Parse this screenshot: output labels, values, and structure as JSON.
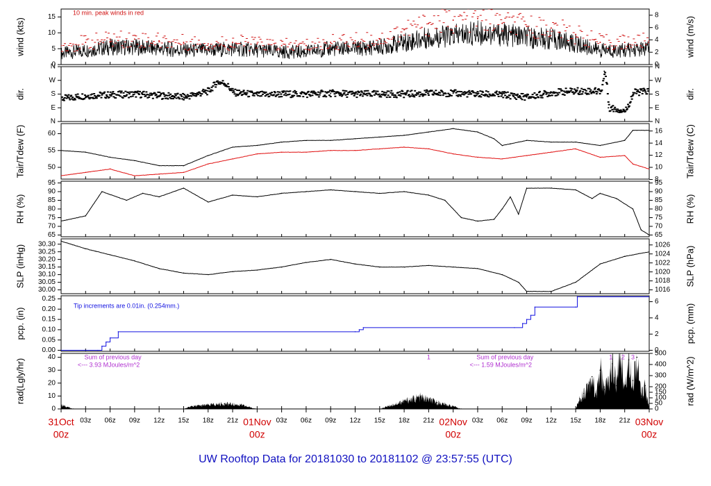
{
  "title": "UW Rooftop Data for 20181030  to  20181102 @ 23:57:55  (UTC)",
  "colors": {
    "axis": "#000000",
    "peak": "#d01010",
    "dew": "#e01010",
    "pcp": "#1010e0",
    "note_red": "#d01010",
    "note_blue": "#1010e0",
    "note_purple": "#b030d0",
    "date": "#d00000",
    "title": "#1010c0"
  },
  "time_axis": {
    "range_hours": [
      0,
      72
    ],
    "ticks": [
      {
        "h": 0,
        "label": "31Oct",
        "major": true
      },
      {
        "h": 3,
        "label": "03z"
      },
      {
        "h": 6,
        "label": "06z"
      },
      {
        "h": 9,
        "label": "09z"
      },
      {
        "h": 12,
        "label": "12z"
      },
      {
        "h": 15,
        "label": "15z"
      },
      {
        "h": 18,
        "label": "18z"
      },
      {
        "h": 21,
        "label": "21z"
      },
      {
        "h": 24,
        "label": "01Nov",
        "major": true
      },
      {
        "h": 27,
        "label": "03z"
      },
      {
        "h": 30,
        "label": "06z"
      },
      {
        "h": 33,
        "label": "09z"
      },
      {
        "h": 36,
        "label": "12z"
      },
      {
        "h": 39,
        "label": "15z"
      },
      {
        "h": 42,
        "label": "18z"
      },
      {
        "h": 45,
        "label": "21z"
      },
      {
        "h": 48,
        "label": "02Nov",
        "major": true
      },
      {
        "h": 51,
        "label": "03z"
      },
      {
        "h": 54,
        "label": "06z"
      },
      {
        "h": 57,
        "label": "09z"
      },
      {
        "h": 60,
        "label": "12z"
      },
      {
        "h": 63,
        "label": "15z"
      },
      {
        "h": 66,
        "label": "18z"
      },
      {
        "h": 69,
        "label": "21z"
      },
      {
        "h": 72,
        "label": "03Nov",
        "major": true
      }
    ],
    "sublabel": "00z"
  },
  "chart_data": [
    {
      "type": "line",
      "id": "wind",
      "ylabel": "wind (kts)",
      "ylabel_right": "wind (m/s)",
      "ylim": [
        0,
        17.5
      ],
      "yticks": [
        0,
        5,
        10,
        15
      ],
      "right_ticks": [
        {
          "v": 0,
          "label": "0"
        },
        {
          "v": 2,
          "label": "2"
        },
        {
          "v": 4,
          "label": "4"
        },
        {
          "v": 6,
          "label": "6"
        },
        {
          "v": 8,
          "label": "8"
        }
      ],
      "right_scale": 1.9438,
      "annotation": "10 min. peak winds in red",
      "series": [
        {
          "name": "",
          "color": "#000000",
          "x": [
            0,
            3,
            6,
            9,
            12,
            15,
            18,
            21,
            24,
            27,
            30,
            33,
            36,
            39,
            42,
            45,
            48,
            51,
            54,
            57,
            60,
            63,
            66,
            69,
            72
          ],
          "values": [
            3.5,
            4.5,
            5.5,
            5.5,
            5,
            4.5,
            4.5,
            5,
            4.5,
            4,
            4,
            5,
            5,
            5.5,
            7,
            8.5,
            9,
            10,
            9.5,
            8.5,
            8,
            6.5,
            4.5,
            4.5,
            5
          ]
        },
        {
          "name": "",
          "color": "#d01010",
          "x": [
            0,
            3,
            6,
            9,
            12,
            15,
            18,
            21,
            24,
            27,
            30,
            33,
            36,
            39,
            42,
            45,
            48,
            51,
            54,
            57,
            60,
            63,
            66,
            69,
            72
          ],
          "values": [
            6,
            7,
            8,
            8,
            7.5,
            7,
            6.5,
            7,
            6.5,
            6,
            6,
            7,
            7.5,
            8,
            11,
            13,
            14,
            14.5,
            13,
            12,
            11.5,
            9.5,
            7,
            7,
            7.5
          ]
        }
      ]
    },
    {
      "type": "scatter",
      "id": "dir",
      "ylabel": "dir.",
      "ylabel_right": "dir.",
      "ylim": [
        0,
        360
      ],
      "yticks": [
        {
          "v": 0,
          "label": "N"
        },
        {
          "v": 90,
          "label": "E"
        },
        {
          "v": 180,
          "label": "S"
        },
        {
          "v": 270,
          "label": "W"
        },
        {
          "v": 360,
          "label": "N"
        }
      ],
      "series": [
        {
          "name": "",
          "x": [
            0,
            3,
            6,
            9,
            12,
            15,
            18,
            19,
            20,
            21,
            24,
            27,
            30,
            33,
            36,
            39,
            42,
            45,
            48,
            51,
            54,
            57,
            60,
            63,
            66,
            66.5,
            67,
            69,
            70,
            72
          ],
          "values": [
            150,
            170,
            175,
            180,
            170,
            160,
            200,
            260,
            250,
            190,
            175,
            180,
            180,
            185,
            180,
            180,
            180,
            185,
            185,
            180,
            175,
            160,
            190,
            200,
            200,
            330,
            90,
            70,
            190,
            200
          ]
        }
      ]
    },
    {
      "type": "line",
      "id": "temp",
      "ylabel": "Tair/Tdew (F)",
      "ylabel_right": "Tair/Tdew (C)",
      "ylim": [
        46.5,
        63
      ],
      "yticks": [
        50,
        55,
        60
      ],
      "right_ticks": [
        {
          "v": 46.4,
          "label": "8"
        },
        {
          "v": 50,
          "label": "10"
        },
        {
          "v": 53.6,
          "label": "12"
        },
        {
          "v": 57.2,
          "label": "14"
        },
        {
          "v": 60.8,
          "label": "16"
        }
      ],
      "series": [
        {
          "name": "",
          "color": "#000000",
          "x": [
            0,
            3,
            6,
            9,
            12,
            15,
            18,
            21,
            24,
            27,
            30,
            33,
            36,
            39,
            42,
            45,
            48,
            51,
            53,
            54,
            55,
            57,
            60,
            63,
            66,
            69,
            70,
            72
          ],
          "values": [
            55,
            54.5,
            53,
            52,
            50.5,
            50.5,
            53.5,
            56,
            56.5,
            57.5,
            58,
            58,
            58.5,
            59,
            59.5,
            60.5,
            61.5,
            60.5,
            58.5,
            56.5,
            57,
            58,
            57.5,
            57.5,
            56.5,
            58,
            61,
            61
          ]
        },
        {
          "name": "",
          "color": "#e01010",
          "x": [
            0,
            3,
            6,
            9,
            12,
            15,
            18,
            21,
            24,
            27,
            30,
            33,
            36,
            39,
            42,
            45,
            48,
            51,
            54,
            57,
            60,
            63,
            66,
            69,
            70,
            72
          ],
          "values": [
            47.5,
            48.5,
            49.5,
            47.5,
            48,
            48.5,
            51,
            52.5,
            54,
            54.5,
            54.5,
            55,
            55,
            55.5,
            56,
            55.5,
            54,
            53,
            52.5,
            53.5,
            54.5,
            55.5,
            53,
            53.5,
            51,
            49.5
          ]
        }
      ]
    },
    {
      "type": "line",
      "id": "rh",
      "ylabel": "RH (%)",
      "ylabel_right": "RH (%)",
      "ylim": [
        64,
        96
      ],
      "yticks": [
        65,
        70,
        75,
        80,
        85,
        90,
        95
      ],
      "right_ticks": [
        {
          "v": 65,
          "label": "65"
        },
        {
          "v": 70,
          "label": "70"
        },
        {
          "v": 75,
          "label": "75"
        },
        {
          "v": 80,
          "label": "80"
        },
        {
          "v": 85,
          "label": "85"
        },
        {
          "v": 90,
          "label": "90"
        },
        {
          "v": 95,
          "label": "95"
        }
      ],
      "series": [
        {
          "name": "",
          "color": "#000000",
          "x": [
            0,
            3,
            5,
            8,
            10,
            12,
            15,
            18,
            21,
            24,
            27,
            30,
            33,
            36,
            39,
            42,
            45,
            47,
            49,
            51,
            53,
            54,
            55,
            56,
            57,
            60,
            63,
            65,
            66,
            68,
            70,
            71,
            72
          ],
          "values": [
            73,
            76,
            90,
            85,
            89,
            87,
            92,
            84,
            88,
            87,
            89,
            90,
            91,
            90,
            89,
            90,
            88,
            85,
            75,
            73,
            74,
            80,
            87,
            77,
            92,
            92,
            91,
            86,
            89,
            86,
            80,
            68,
            65
          ]
        }
      ]
    },
    {
      "type": "line",
      "id": "slp",
      "ylabel": "SLP (inHg)",
      "ylabel_right": "SLP (hPa)",
      "ylim": [
        29.975,
        30.335
      ],
      "yticks": [
        30.0,
        30.05,
        30.1,
        30.15,
        30.2,
        30.25,
        30.3
      ],
      "ytick_labels": [
        "30.00",
        "30.05",
        "30.10",
        "30.15",
        "30.20",
        "30.25",
        "30.30"
      ],
      "right_ticks": [
        {
          "v": 30.0,
          "label": "1016"
        },
        {
          "v": 30.059,
          "label": "1018"
        },
        {
          "v": 30.118,
          "label": "1020"
        },
        {
          "v": 30.177,
          "label": "1022"
        },
        {
          "v": 30.236,
          "label": "1024"
        },
        {
          "v": 30.295,
          "label": "1026"
        }
      ],
      "series": [
        {
          "name": "",
          "color": "#000000",
          "x": [
            0,
            3,
            6,
            9,
            12,
            15,
            18,
            21,
            24,
            27,
            30,
            33,
            36,
            39,
            42,
            45,
            48,
            51,
            54,
            56,
            57,
            60,
            63,
            66,
            69,
            72
          ],
          "values": [
            30.32,
            30.27,
            30.23,
            30.19,
            30.14,
            30.11,
            30.1,
            30.12,
            30.13,
            30.15,
            30.18,
            30.2,
            30.17,
            30.15,
            30.15,
            30.16,
            30.15,
            30.14,
            30.1,
            30.05,
            29.99,
            29.99,
            30.05,
            30.17,
            30.22,
            30.25
          ]
        }
      ]
    },
    {
      "type": "line",
      "id": "pcp",
      "ylabel": "pcp. (in)",
      "ylabel_right": "pcp. (mm)",
      "ylim": [
        -0.005,
        0.265
      ],
      "yticks": [
        0,
        0.05,
        0.1,
        0.15,
        0.2,
        0.25
      ],
      "ytick_labels": [
        "0.00",
        "0.05",
        "0.10",
        "0.15",
        "0.20",
        "0.25"
      ],
      "right_ticks": [
        {
          "v": 0,
          "label": "0"
        },
        {
          "v": 0.0787,
          "label": "2"
        },
        {
          "v": 0.1575,
          "label": "4"
        },
        {
          "v": 0.2362,
          "label": "6"
        }
      ],
      "annotation": "Tip increments are 0.01in. (0.254mm.)",
      "series": [
        {
          "name": "",
          "color": "#1010e0",
          "x": [
            0,
            4.5,
            5,
            5.5,
            6,
            7,
            36,
            36.5,
            37,
            55.5,
            56.5,
            57,
            57.5,
            58,
            63,
            63.2,
            72
          ],
          "values": [
            0,
            0,
            0.02,
            0.04,
            0.06,
            0.09,
            0.09,
            0.1,
            0.11,
            0.11,
            0.13,
            0.15,
            0.17,
            0.21,
            0.21,
            0.26,
            0.26
          ]
        }
      ]
    },
    {
      "type": "area",
      "id": "rad",
      "ylabel": "rad(Lgly/hr)",
      "ylabel_right": "rad (W/m^2)",
      "ylim": [
        0,
        43
      ],
      "yticks": [
        0,
        10,
        20,
        30,
        40
      ],
      "right_ticks": [
        {
          "v": 0,
          "label": "0"
        },
        {
          "v": 4.3,
          "label": "50"
        },
        {
          "v": 8.6,
          "label": "100"
        },
        {
          "v": 12.9,
          "label": "150"
        },
        {
          "v": 17.2,
          "label": "200"
        },
        {
          "v": 25.8,
          "label": "300"
        },
        {
          "v": 34.4,
          "label": "400"
        },
        {
          "v": 43,
          "label": "500"
        }
      ],
      "notes": [
        {
          "text": "Sum of previous day",
          "h": 6
        },
        {
          "text": "<--- 3.93 MJoules/m^2",
          "h": 6
        },
        {
          "text": "Sum of previous day",
          "h": 54
        },
        {
          "text": "<--- 1.59 MJoules/m^2",
          "h": 54
        }
      ],
      "markers": [
        {
          "text": "1",
          "h": 45
        },
        {
          "text": "1",
          "h": 67.3
        },
        {
          "text": "2",
          "h": 68.8
        },
        {
          "text": "3",
          "h": 70
        }
      ],
      "series": [
        {
          "name": "",
          "x": [
            0,
            1,
            1.5,
            15,
            16,
            18,
            20,
            22,
            24,
            39,
            40,
            42,
            44,
            46,
            48,
            49,
            63,
            63.5,
            64,
            65,
            65.5,
            66,
            66.5,
            67,
            67.5,
            68,
            68.5,
            69,
            69.5,
            70,
            70.5,
            71,
            71.5,
            72
          ],
          "values": [
            3,
            1,
            0,
            0,
            2,
            3,
            4,
            3,
            0,
            0,
            2,
            6,
            9,
            5,
            2,
            0,
            0,
            8,
            12,
            25,
            10,
            30,
            15,
            20,
            35,
            18,
            45,
            15,
            38,
            22,
            40,
            10,
            18,
            0
          ]
        }
      ]
    }
  ]
}
